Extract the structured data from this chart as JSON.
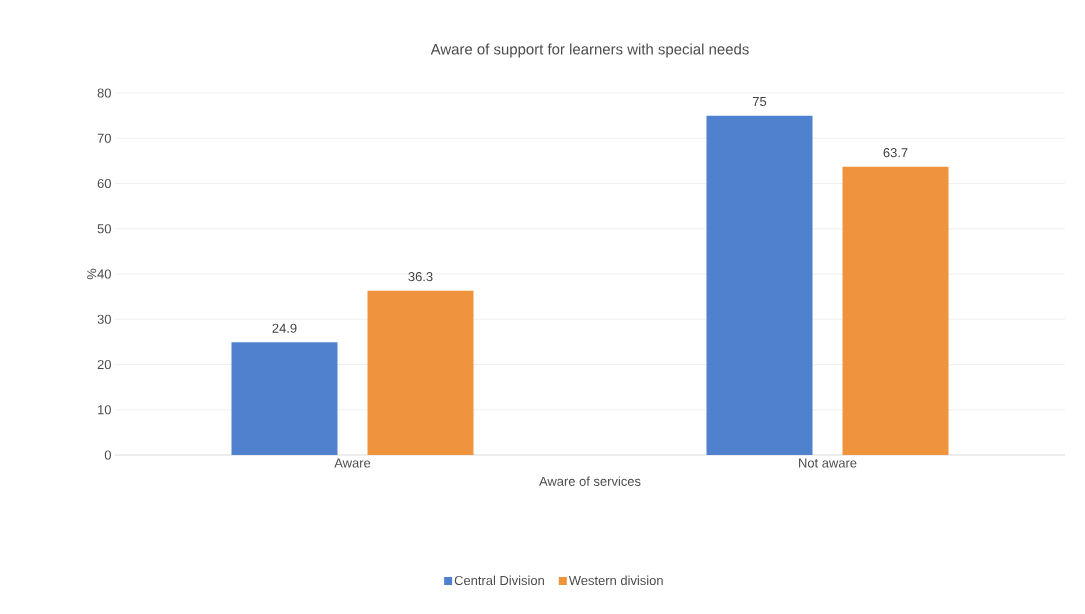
{
  "chart_data": {
    "type": "bar",
    "title": "Aware of support for learners with special needs",
    "xlabel": "Aware of services",
    "ylabel": "%",
    "categories": [
      "Aware",
      "Not aware"
    ],
    "series": [
      {
        "name": "Central Division",
        "color": "#4f81cf",
        "values": [
          24.9,
          75
        ]
      },
      {
        "name": "Western division",
        "color": "#f0933d",
        "values": [
          36.3,
          63.7
        ]
      }
    ],
    "ylim": [
      0,
      80
    ],
    "yticks": [
      0,
      10,
      20,
      30,
      40,
      50,
      60,
      70,
      80
    ],
    "grid": "y",
    "legend": "bottom",
    "data_labels": true
  }
}
